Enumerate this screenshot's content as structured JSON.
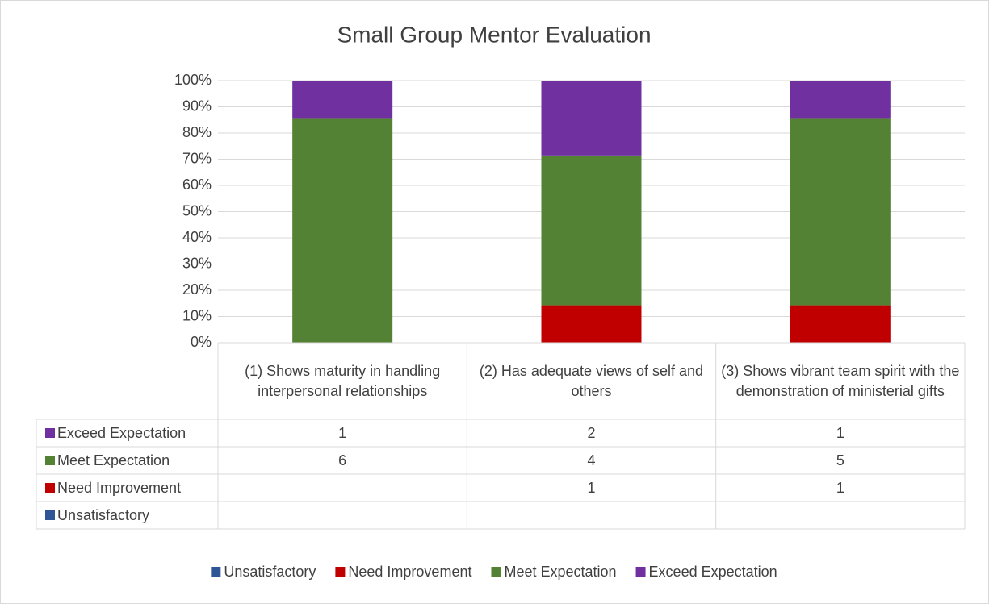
{
  "chart_data": {
    "type": "bar",
    "stacking": "percent",
    "title": "Small Group Mentor Evaluation",
    "categories": [
      "(1) Shows maturity in handling interpersonal relationships",
      "(2) Has adequate views of self and others",
      "(3) Shows vibrant team spirit with the demonstration of ministerial gifts"
    ],
    "series": [
      {
        "name": "Unsatisfactory",
        "color": "#2f5597",
        "values": [
          null,
          null,
          null
        ]
      },
      {
        "name": "Need Improvement",
        "color": "#c00000",
        "values": [
          null,
          1,
          1
        ]
      },
      {
        "name": "Meet Expectation",
        "color": "#548235",
        "values": [
          6,
          4,
          5
        ]
      },
      {
        "name": "Exceed Expectation",
        "color": "#7030a0",
        "values": [
          1,
          2,
          1
        ]
      }
    ],
    "ylim": [
      0,
      100
    ],
    "yticks": [
      {
        "value": 0,
        "label": "0%"
      },
      {
        "value": 10,
        "label": "10%"
      },
      {
        "value": 20,
        "label": "20%"
      },
      {
        "value": 30,
        "label": "30%"
      },
      {
        "value": 40,
        "label": "40%"
      },
      {
        "value": 50,
        "label": "50%"
      },
      {
        "value": 60,
        "label": "60%"
      },
      {
        "value": 70,
        "label": "70%"
      },
      {
        "value": 80,
        "label": "80%"
      },
      {
        "value": 90,
        "label": "90%"
      },
      {
        "value": 100,
        "label": "100%"
      }
    ],
    "grid": true,
    "legend": "bottom",
    "data_table": true
  }
}
